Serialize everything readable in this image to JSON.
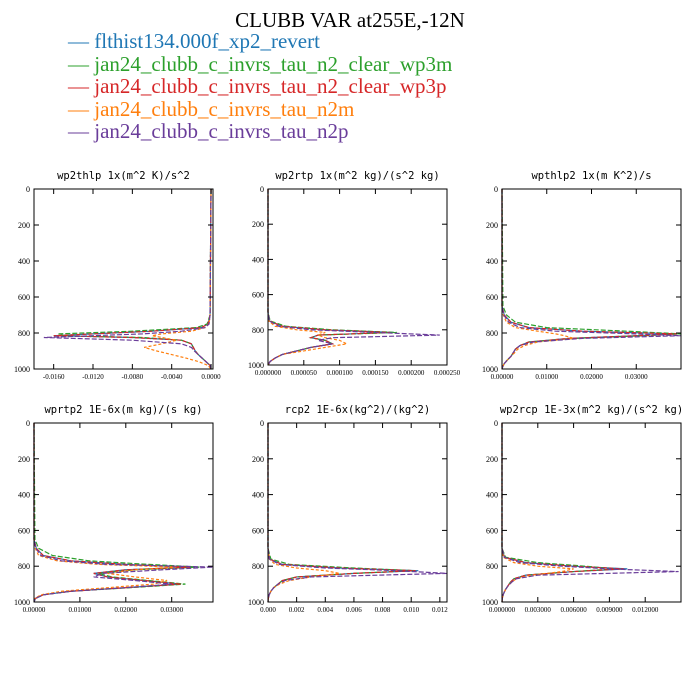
{
  "figure": {
    "title": "CLUBB VAR at255E,-12N"
  },
  "legend": [
    {
      "label": "flthist134.000f_xp2_revert",
      "color": "#1f77b4"
    },
    {
      "label": "jan24_clubb_c_invrs_tau_n2_clear_wp3m",
      "color": "#2ca02c"
    },
    {
      "label": "jan24_clubb_c_invrs_tau_n2_clear_wp3p",
      "color": "#d62728"
    },
    {
      "label": "jan24_clubb_c_invrs_tau_n2m",
      "color": "#ff7f0e"
    },
    {
      "label": "jan24_clubb_c_invrs_tau_n2p",
      "color": "#6a3d9a"
    }
  ],
  "chart_data": [
    {
      "type": "line",
      "title": "wp2thlp  1x(m^2 K)/s^2",
      "xlim": [
        -0.018,
        0.0002
      ],
      "ylim": [
        1000,
        0
      ],
      "xticks": [
        -0.016,
        -0.012,
        -0.008,
        -0.004,
        0.0
      ],
      "xtick_labels": [
        "-0.0160",
        "-0.0120",
        "-0.0080",
        "-0.0040",
        "0.0000"
      ],
      "yticks": [
        0,
        200,
        400,
        600,
        800,
        1000
      ],
      "ytick_labels": [
        "0",
        "200",
        "400",
        "600",
        "800",
        "1000"
      ],
      "y": [
        0,
        700,
        750,
        770,
        790,
        805,
        815,
        825,
        840,
        860,
        880,
        900,
        920,
        940,
        960,
        980,
        1000
      ],
      "series": [
        {
          "values": [
            0,
            -0.0001,
            -0.0003,
            -0.001,
            -0.006,
            -0.012,
            -0.016,
            -0.008,
            -0.003,
            -0.002,
            -0.0018,
            -0.0016,
            -0.0013,
            -0.0009,
            -0.0005,
            -0.0001,
            0
          ]
        },
        {
          "values": [
            0,
            -0.0001,
            -0.0004,
            -0.0015,
            -0.008,
            -0.0155,
            -0.015,
            -0.007,
            -0.003,
            -0.002,
            -0.0018,
            -0.0016,
            -0.0013,
            -0.0009,
            -0.0005,
            -0.0001,
            0
          ]
        },
        {
          "values": [
            0,
            -0.0001,
            -0.0003,
            -0.001,
            -0.006,
            -0.012,
            -0.016,
            -0.008,
            -0.003,
            -0.002,
            -0.0018,
            -0.0016,
            -0.0013,
            -0.0009,
            -0.0005,
            -0.0001,
            0
          ]
        },
        {
          "values": [
            0,
            -0.0001,
            -0.0002,
            -0.0006,
            -0.002,
            -0.005,
            -0.006,
            -0.005,
            -0.0035,
            -0.005,
            -0.0068,
            -0.0055,
            -0.004,
            -0.0025,
            -0.0012,
            -0.0003,
            0
          ]
        },
        {
          "values": [
            0,
            -0.0001,
            -0.0002,
            -0.0006,
            -0.003,
            -0.007,
            -0.012,
            -0.017,
            -0.008,
            -0.003,
            -0.002,
            -0.0017,
            -0.0013,
            -0.0009,
            -0.0005,
            -0.0001,
            0
          ]
        }
      ]
    },
    {
      "type": "line",
      "title": "wp2rtp  1x(m^2 kg)/(s^2 kg)",
      "xlim": [
        0.0,
        0.00025
      ],
      "ylim": [
        1000,
        0
      ],
      "xticks": [
        0.0,
        5e-05,
        0.0001,
        0.00015,
        0.0002,
        0.00025
      ],
      "xtick_labels": [
        "0.000000",
        "0.000050",
        "0.000100",
        "0.000150",
        "0.000200",
        "0.000250"
      ],
      "yticks": [
        0,
        200,
        400,
        600,
        800,
        1000
      ],
      "ytick_labels": [
        "0",
        "200",
        "400",
        "600",
        "800",
        "1000"
      ],
      "y": [
        0,
        700,
        750,
        780,
        800,
        815,
        830,
        845,
        860,
        880,
        900,
        920,
        940,
        960,
        980,
        1000
      ],
      "series": [
        {
          "values": [
            0,
            0,
            2e-06,
            2e-05,
            8e-05,
            0.000175,
            7e-05,
            6e-05,
            8e-05,
            9e-05,
            6e-05,
            4e-05,
            2e-05,
            1e-05,
            3e-06,
            0
          ]
        },
        {
          "values": [
            0,
            0,
            3e-06,
            2.5e-05,
            9e-05,
            0.00018,
            7e-05,
            6e-05,
            8e-05,
            9e-05,
            6e-05,
            4e-05,
            2e-05,
            1e-05,
            3e-06,
            0
          ]
        },
        {
          "values": [
            0,
            0,
            2e-06,
            2e-05,
            8e-05,
            0.00017,
            7e-05,
            6e-05,
            8e-05,
            9e-05,
            6e-05,
            4e-05,
            2e-05,
            1e-05,
            3e-06,
            0
          ]
        },
        {
          "values": [
            0,
            0,
            1e-06,
            1e-05,
            4e-05,
            8e-05,
            7e-05,
            8e-05,
            0.0001,
            0.00011,
            8e-05,
            5e-05,
            2e-05,
            1e-05,
            3e-06,
            0
          ]
        },
        {
          "values": [
            0,
            0,
            2e-06,
            1.5e-05,
            6e-05,
            0.00015,
            0.00024,
            9e-05,
            7e-05,
            9e-05,
            6e-05,
            4e-05,
            2e-05,
            1e-05,
            3e-06,
            0
          ]
        }
      ]
    },
    {
      "type": "line",
      "title": "wpthlp2  1x(m K^2)/s",
      "xlim": [
        0.0,
        0.04
      ],
      "ylim": [
        1000,
        0
      ],
      "xticks": [
        0.0,
        0.01,
        0.02,
        0.03
      ],
      "xtick_labels": [
        "0.00000",
        "0.01000",
        "0.02000",
        "0.03000"
      ],
      "yticks": [
        0,
        200,
        400,
        600,
        800,
        1000
      ],
      "ytick_labels": [
        "0",
        "200",
        "400",
        "600",
        "800",
        "1000"
      ],
      "y": [
        0,
        650,
        700,
        740,
        770,
        790,
        805,
        815,
        830,
        850,
        870,
        890,
        910,
        930,
        950,
        970,
        990,
        1000
      ],
      "series": [
        {
          "values": [
            0,
            0,
            0.0005,
            0.002,
            0.006,
            0.018,
            0.039,
            0.03,
            0.015,
            0.006,
            0.004,
            0.003,
            0.0025,
            0.002,
            0.0012,
            0.0005,
            0.0001,
            0
          ]
        },
        {
          "values": [
            0,
            0.0002,
            0.001,
            0.003,
            0.01,
            0.028,
            0.04,
            0.032,
            0.016,
            0.006,
            0.004,
            0.003,
            0.0025,
            0.002,
            0.0012,
            0.0005,
            0.0001,
            0
          ]
        },
        {
          "values": [
            0,
            0,
            0.0005,
            0.002,
            0.006,
            0.018,
            0.039,
            0.03,
            0.015,
            0.006,
            0.004,
            0.003,
            0.0025,
            0.002,
            0.0012,
            0.0005,
            0.0001,
            0
          ]
        },
        {
          "values": [
            0,
            0,
            0.0003,
            0.001,
            0.003,
            0.008,
            0.012,
            0.014,
            0.016,
            0.008,
            0.005,
            0.0035,
            0.0028,
            0.002,
            0.0012,
            0.0005,
            0.0001,
            0
          ]
        },
        {
          "values": [
            0,
            0,
            0.0004,
            0.0015,
            0.004,
            0.012,
            0.03,
            0.04,
            0.018,
            0.007,
            0.004,
            0.003,
            0.0025,
            0.002,
            0.0012,
            0.0005,
            0.0001,
            0
          ]
        }
      ]
    },
    {
      "type": "line",
      "title": "wprtp2  1E-6x(m kg)/(s kg)",
      "xlim": [
        0.0,
        0.039
      ],
      "ylim": [
        1000,
        0
      ],
      "xticks": [
        0.0,
        0.01,
        0.02,
        0.03
      ],
      "xtick_labels": [
        "0.00000",
        "0.01000",
        "0.02000",
        "0.03000"
      ],
      "yticks": [
        0,
        200,
        400,
        600,
        800,
        1000
      ],
      "ytick_labels": [
        "0",
        "200",
        "400",
        "600",
        "800",
        "1000"
      ],
      "y": [
        0,
        650,
        700,
        740,
        770,
        790,
        805,
        820,
        840,
        860,
        880,
        900,
        920,
        940,
        960,
        980,
        1000
      ],
      "series": [
        {
          "values": [
            0,
            0,
            0.0005,
            0.002,
            0.008,
            0.02,
            0.034,
            0.02,
            0.013,
            0.016,
            0.024,
            0.032,
            0.02,
            0.008,
            0.002,
            0.0003,
            0
          ]
        },
        {
          "values": [
            0,
            0.0002,
            0.001,
            0.004,
            0.012,
            0.025,
            0.036,
            0.022,
            0.014,
            0.017,
            0.025,
            0.033,
            0.021,
            0.008,
            0.002,
            0.0003,
            0
          ]
        },
        {
          "values": [
            0,
            0,
            0.0005,
            0.002,
            0.008,
            0.02,
            0.034,
            0.02,
            0.013,
            0.016,
            0.024,
            0.032,
            0.02,
            0.008,
            0.002,
            0.0003,
            0
          ]
        },
        {
          "values": [
            0,
            0,
            0.0003,
            0.001,
            0.005,
            0.014,
            0.031,
            0.022,
            0.016,
            0.022,
            0.029,
            0.026,
            0.016,
            0.006,
            0.0015,
            0.0002,
            0
          ]
        },
        {
          "values": [
            0,
            0,
            0.0004,
            0.0015,
            0.006,
            0.016,
            0.039,
            0.028,
            0.015,
            0.013,
            0.022,
            0.03,
            0.02,
            0.008,
            0.002,
            0.0003,
            0
          ]
        }
      ]
    },
    {
      "type": "line",
      "title": "rcp2  1E-6x(kg^2)/(kg^2)",
      "xlim": [
        0.0,
        0.0125
      ],
      "ylim": [
        1000,
        0
      ],
      "xticks": [
        0.0,
        0.002,
        0.004,
        0.006,
        0.008,
        0.01,
        0.012
      ],
      "xtick_labels": [
        "0.000",
        "0.002",
        "0.004",
        "0.006",
        "0.008",
        "0.010",
        "0.012"
      ],
      "yticks": [
        0,
        200,
        400,
        600,
        800,
        1000
      ],
      "ytick_labels": [
        "0",
        "200",
        "400",
        "600",
        "800",
        "1000"
      ],
      "y": [
        0,
        700,
        760,
        790,
        810,
        825,
        840,
        860,
        880,
        900,
        920,
        940,
        960,
        980,
        1000
      ],
      "series": [
        {
          "values": [
            0,
            0,
            0.0001,
            0.001,
            0.005,
            0.0105,
            0.006,
            0.002,
            0.001,
            0.0007,
            0.0004,
            0.0002,
            8e-05,
            2e-05,
            0
          ]
        },
        {
          "values": [
            0,
            0,
            0.0002,
            0.0015,
            0.006,
            0.0102,
            0.006,
            0.002,
            0.001,
            0.0007,
            0.0004,
            0.0002,
            8e-05,
            2e-05,
            0
          ]
        },
        {
          "values": [
            0,
            0,
            0.0001,
            0.001,
            0.005,
            0.0103,
            0.006,
            0.002,
            0.001,
            0.0007,
            0.0004,
            0.0002,
            8e-05,
            2e-05,
            0
          ]
        },
        {
          "values": [
            0,
            0,
            0.0001,
            0.0005,
            0.002,
            0.004,
            0.005,
            0.003,
            0.0015,
            0.0008,
            0.0004,
            0.0002,
            8e-05,
            2e-05,
            0
          ]
        },
        {
          "values": [
            0,
            0,
            0.0001,
            0.0008,
            0.004,
            0.009,
            0.0125,
            0.003,
            0.0012,
            0.0007,
            0.0004,
            0.0002,
            8e-05,
            2e-05,
            0
          ]
        }
      ]
    },
    {
      "type": "line",
      "title": "wp2rcp  1E-3x(m^2 kg)/(s^2 kg)",
      "xlim": [
        0.0,
        0.015
      ],
      "ylim": [
        1000,
        0
      ],
      "xticks": [
        0.0,
        0.003,
        0.006,
        0.009,
        0.012
      ],
      "xtick_labels": [
        "0.000000",
        "0.003000",
        "0.006000",
        "0.009000",
        "0.012000"
      ],
      "yticks": [
        0,
        200,
        400,
        600,
        800,
        1000
      ],
      "ytick_labels": [
        "0",
        "200",
        "400",
        "600",
        "800",
        "1000"
      ],
      "y": [
        0,
        700,
        750,
        780,
        800,
        815,
        830,
        850,
        870,
        890,
        910,
        930,
        950,
        970,
        990,
        1000
      ],
      "series": [
        {
          "values": [
            0,
            0,
            0.0002,
            0.002,
            0.006,
            0.0105,
            0.006,
            0.002,
            0.001,
            0.0007,
            0.0005,
            0.0003,
            0.00015,
            5e-05,
            1e-05,
            0
          ]
        },
        {
          "values": [
            0,
            0,
            0.0003,
            0.003,
            0.007,
            0.0095,
            0.006,
            0.002,
            0.001,
            0.0007,
            0.0005,
            0.0003,
            0.00015,
            5e-05,
            1e-05,
            0
          ]
        },
        {
          "values": [
            0,
            0,
            0.0002,
            0.002,
            0.006,
            0.0102,
            0.006,
            0.002,
            0.001,
            0.0007,
            0.0005,
            0.0003,
            0.00015,
            5e-05,
            1e-05,
            0
          ]
        },
        {
          "values": [
            0,
            0,
            0.0001,
            0.001,
            0.003,
            0.006,
            0.005,
            0.0025,
            0.0012,
            0.0008,
            0.0005,
            0.0003,
            0.00015,
            5e-05,
            1e-05,
            0
          ]
        },
        {
          "values": [
            0,
            0,
            0.0002,
            0.0015,
            0.005,
            0.009,
            0.0148,
            0.003,
            0.0012,
            0.0008,
            0.0005,
            0.0003,
            0.00015,
            5e-05,
            1e-05,
            0
          ]
        }
      ]
    }
  ]
}
